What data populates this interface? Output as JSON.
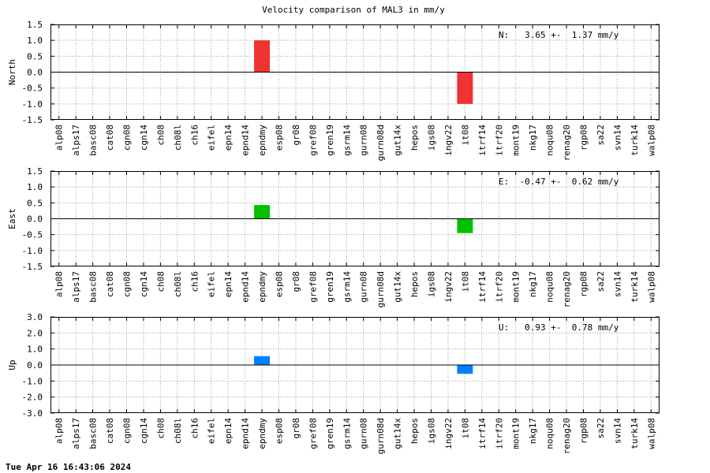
{
  "title": "Velocity comparison of MAL3 in mm/y",
  "footer": "Tue Apr 16 16:43:06 2024",
  "chart_data": [
    {
      "type": "bar",
      "ylabel": "North",
      "annotation": "N:   3.65 +-  1.37 mm/y",
      "color": "#f03232",
      "ylim": [
        -1.5,
        1.5
      ],
      "yticks": [
        1.5,
        1.0,
        0.5,
        0.0,
        -0.5,
        -1.0,
        -1.5
      ],
      "ytick_labels": [
        "1.5",
        "1.0",
        "0.5",
        "0.0",
        "-0.5",
        "-1.0",
        "-1.5"
      ],
      "categories": [
        "alp08",
        "alps17",
        "basc08",
        "cat08",
        "cgn08",
        "cgn14",
        "ch08",
        "ch08l",
        "ch16",
        "eifel",
        "epn14",
        "epnd14",
        "epndmy",
        "esp08",
        "gr08",
        "gref08",
        "gren19",
        "gsrm14",
        "gurn08",
        "gurn08d",
        "gut14x",
        "hepos",
        "igs08",
        "ingv22",
        "it08",
        "itrf14",
        "itrf20",
        "mont19",
        "nkg17",
        "noqu08",
        "renag20",
        "rgp08",
        "sa22",
        "svn14",
        "turk14",
        "walp08"
      ],
      "values": [
        null,
        null,
        null,
        null,
        null,
        null,
        null,
        null,
        null,
        null,
        null,
        null,
        1.0,
        null,
        null,
        null,
        null,
        null,
        null,
        null,
        null,
        null,
        null,
        null,
        -1.0,
        null,
        null,
        null,
        null,
        null,
        null,
        null,
        null,
        null,
        null,
        null
      ]
    },
    {
      "type": "bar",
      "ylabel": "East",
      "annotation": "E:  -0.47 +-  0.62 mm/y",
      "color": "#00c000",
      "ylim": [
        -1.5,
        1.5
      ],
      "yticks": [
        1.5,
        1.0,
        0.5,
        0.0,
        -0.5,
        -1.0,
        -1.5
      ],
      "ytick_labels": [
        "1.5",
        "1.0",
        "0.5",
        "0.0",
        "-0.5",
        "-1.0",
        "-1.5"
      ],
      "categories": [
        "alp08",
        "alps17",
        "basc08",
        "cat08",
        "cgn08",
        "cgn14",
        "ch08",
        "ch08l",
        "ch16",
        "eifel",
        "epn14",
        "epnd14",
        "epndmy",
        "esp08",
        "gr08",
        "gref08",
        "gren19",
        "gsrm14",
        "gurn08",
        "gurn08d",
        "gut14x",
        "hepos",
        "igs08",
        "ingv22",
        "it08",
        "itrf14",
        "itrf20",
        "mont19",
        "nkg17",
        "noqu08",
        "renag20",
        "rgp08",
        "sa22",
        "svn14",
        "turk14",
        "walp08"
      ],
      "values": [
        null,
        null,
        null,
        null,
        null,
        null,
        null,
        null,
        null,
        null,
        null,
        null,
        0.43,
        null,
        null,
        null,
        null,
        null,
        null,
        null,
        null,
        null,
        null,
        null,
        -0.45,
        null,
        null,
        null,
        null,
        null,
        null,
        null,
        null,
        null,
        null,
        null
      ]
    },
    {
      "type": "bar",
      "ylabel": "Up",
      "annotation": "U:   0.93 +-  0.78 mm/y",
      "color": "#0080ff",
      "ylim": [
        -3.0,
        3.0
      ],
      "yticks": [
        3.0,
        2.0,
        1.0,
        0.0,
        -1.0,
        -2.0,
        -3.0
      ],
      "ytick_labels": [
        "3.0",
        "2.0",
        "1.0",
        "0.0",
        "-1.0",
        "-2.0",
        "-3.0"
      ],
      "categories": [
        "alp08",
        "alps17",
        "basc08",
        "cat08",
        "cgn08",
        "cgn14",
        "ch08",
        "ch08l",
        "ch16",
        "eifel",
        "epn14",
        "epnd14",
        "epndmy",
        "esp08",
        "gr08",
        "gref08",
        "gren19",
        "gsrm14",
        "gurn08",
        "gurn08d",
        "gut14x",
        "hepos",
        "igs08",
        "ingv22",
        "it08",
        "itrf14",
        "itrf20",
        "mont19",
        "nkg17",
        "noqu08",
        "renag20",
        "rgp08",
        "sa22",
        "svn14",
        "turk14",
        "walp08"
      ],
      "values": [
        null,
        null,
        null,
        null,
        null,
        null,
        null,
        null,
        null,
        null,
        null,
        null,
        0.55,
        null,
        null,
        null,
        null,
        null,
        null,
        null,
        null,
        null,
        null,
        null,
        -0.55,
        null,
        null,
        null,
        null,
        null,
        null,
        null,
        null,
        null,
        null,
        null
      ]
    }
  ]
}
